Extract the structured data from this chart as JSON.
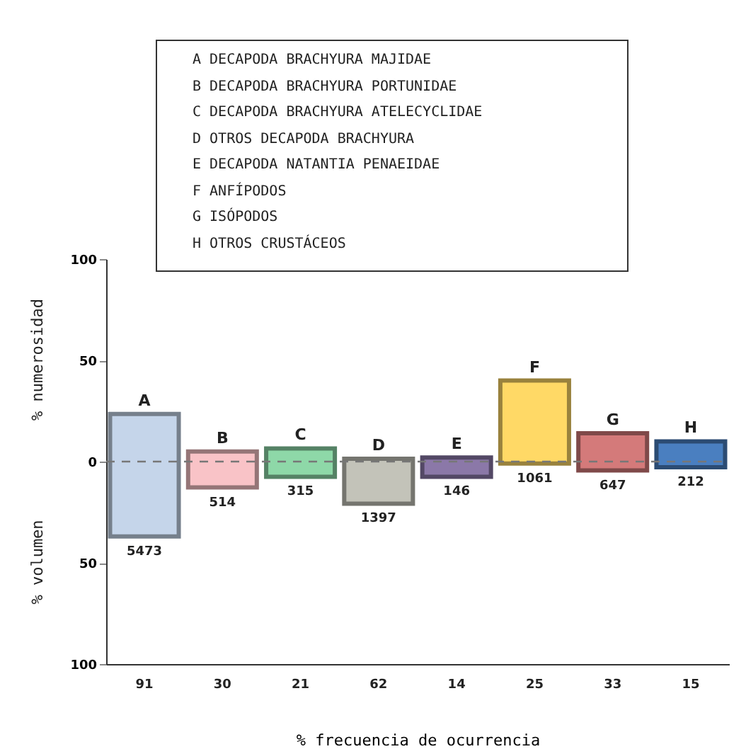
{
  "chart_data": {
    "type": "bar",
    "xlabel": "% frecuencia de ocurrencia",
    "ylabel": "% numerosidad",
    "y2label": "% volumen",
    "categories": [
      "A",
      "B",
      "C",
      "D",
      "E",
      "F",
      "G",
      "H"
    ],
    "values": [
      60.5,
      17.8,
      14,
      22.2,
      9.5,
      41,
      18.4,
      12.8
    ],
    "base": [
      -37,
      -12.8,
      -7.5,
      -20.8,
      -7.5,
      -1,
      -4.4,
      -2.8
    ],
    "colors": [
      "#c5d5ea",
      "#f9c3c7",
      "#8ed8a8",
      "#c3c3b9",
      "#8b78a8",
      "#ffd966",
      "#d47a7a",
      "#4a7fc0"
    ],
    "ylim": [
      -100,
      100
    ],
    "yticks": [
      {
        "value": -100,
        "label": "100"
      },
      {
        "value": -50,
        "label": "50"
      },
      0,
      50,
      100
    ],
    "grid": false,
    "ref_lines": [
      {
        "axis": "y",
        "value": 0,
        "line_style": "dashed"
      }
    ],
    "annotations": [
      "A   DECAPODA BRACHYURA MAJIDAE",
      "B   DECAPODA BRACHYURA PORTUNIDAE",
      "C   DECAPODA BRACHYURA ATELECYCLIDAE",
      "D   OTROS DECAPODA BRACHYURA",
      "E   DECAPODA NATANTIA PENAEIDAE",
      "F   ANFÍPODOS",
      "G   ISÓPODOS",
      "H   OTROS CRUSTÁCEOS",
      "5473",
      "514",
      "315",
      "1397",
      "146",
      "1061",
      "647",
      "212",
      "91",
      "30",
      "21",
      "62",
      "14",
      "25",
      "33",
      "15"
    ]
  }
}
